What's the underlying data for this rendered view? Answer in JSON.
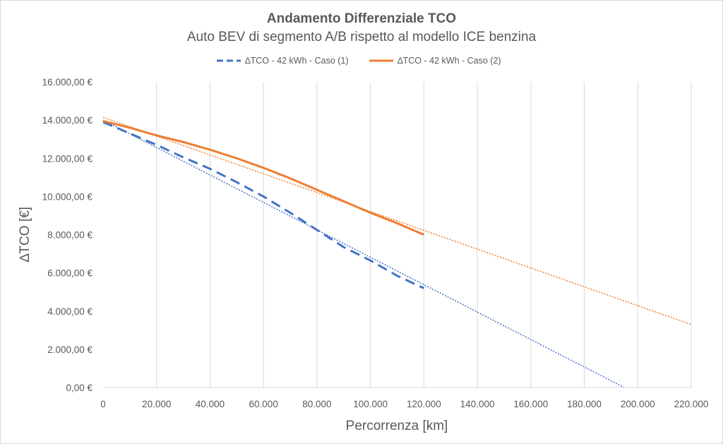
{
  "chart_data": {
    "type": "line",
    "title": "Andamento Differenziale TCO",
    "subtitle": "Auto BEV di segmento A/B rispetto al modello ICE benzina",
    "xlabel": "Percorrenza [km]",
    "ylabel": "∆TCO [€]",
    "xlim": [
      0,
      220000
    ],
    "ylim": [
      0,
      16000
    ],
    "x_ticks": [
      0,
      20000,
      40000,
      60000,
      80000,
      100000,
      120000,
      140000,
      160000,
      180000,
      200000,
      220000
    ],
    "x_tick_labels": [
      "0",
      "20.000",
      "40.000",
      "60.000",
      "80.000",
      "100.000",
      "120.000",
      "140.000",
      "160.000",
      "180.000",
      "200.000",
      "220.000"
    ],
    "y_ticks": [
      0,
      2000,
      4000,
      6000,
      8000,
      10000,
      12000,
      14000,
      16000
    ],
    "y_tick_labels": [
      "0,00 €",
      "2.000,00 €",
      "4.000,00 €",
      "6.000,00 €",
      "8.000,00 €",
      "10.000,00 €",
      "12.000,00 €",
      "14.000,00 €",
      "16.000,00 €"
    ],
    "grid": "vertical",
    "legend_position": "top",
    "series": [
      {
        "name": "∆TCO - 42 kWh - Caso (1)",
        "style": "dashed",
        "color": "#4472c4",
        "x": [
          0,
          10000,
          20000,
          30000,
          40000,
          50000,
          60000,
          70000,
          80000,
          90000,
          100000,
          110000,
          120000
        ],
        "y": [
          13900,
          13300,
          12700,
          12050,
          11450,
          10750,
          10000,
          9150,
          8250,
          7350,
          6650,
          5850,
          5200
        ]
      },
      {
        "name": "∆TCO - 42 kWh - Caso (2)",
        "style": "solid",
        "color": "#ed7d31",
        "x": [
          0,
          10000,
          20000,
          30000,
          40000,
          50000,
          60000,
          70000,
          80000,
          90000,
          100000,
          110000,
          120000
        ],
        "y": [
          13950,
          13600,
          13200,
          12850,
          12450,
          12000,
          11500,
          10950,
          10350,
          9750,
          9150,
          8600,
          8000
        ]
      }
    ],
    "trendlines": [
      {
        "series": "∆TCO - 42 kWh - Caso (1)",
        "style": "dotted",
        "color": "#4472c4",
        "x": [
          0,
          195000
        ],
        "y": [
          14000,
          0
        ]
      },
      {
        "series": "∆TCO - 42 kWh - Caso (2)",
        "style": "dotted",
        "color": "#ed7d31",
        "x": [
          0,
          220000
        ],
        "y": [
          14150,
          3300
        ]
      }
    ]
  }
}
